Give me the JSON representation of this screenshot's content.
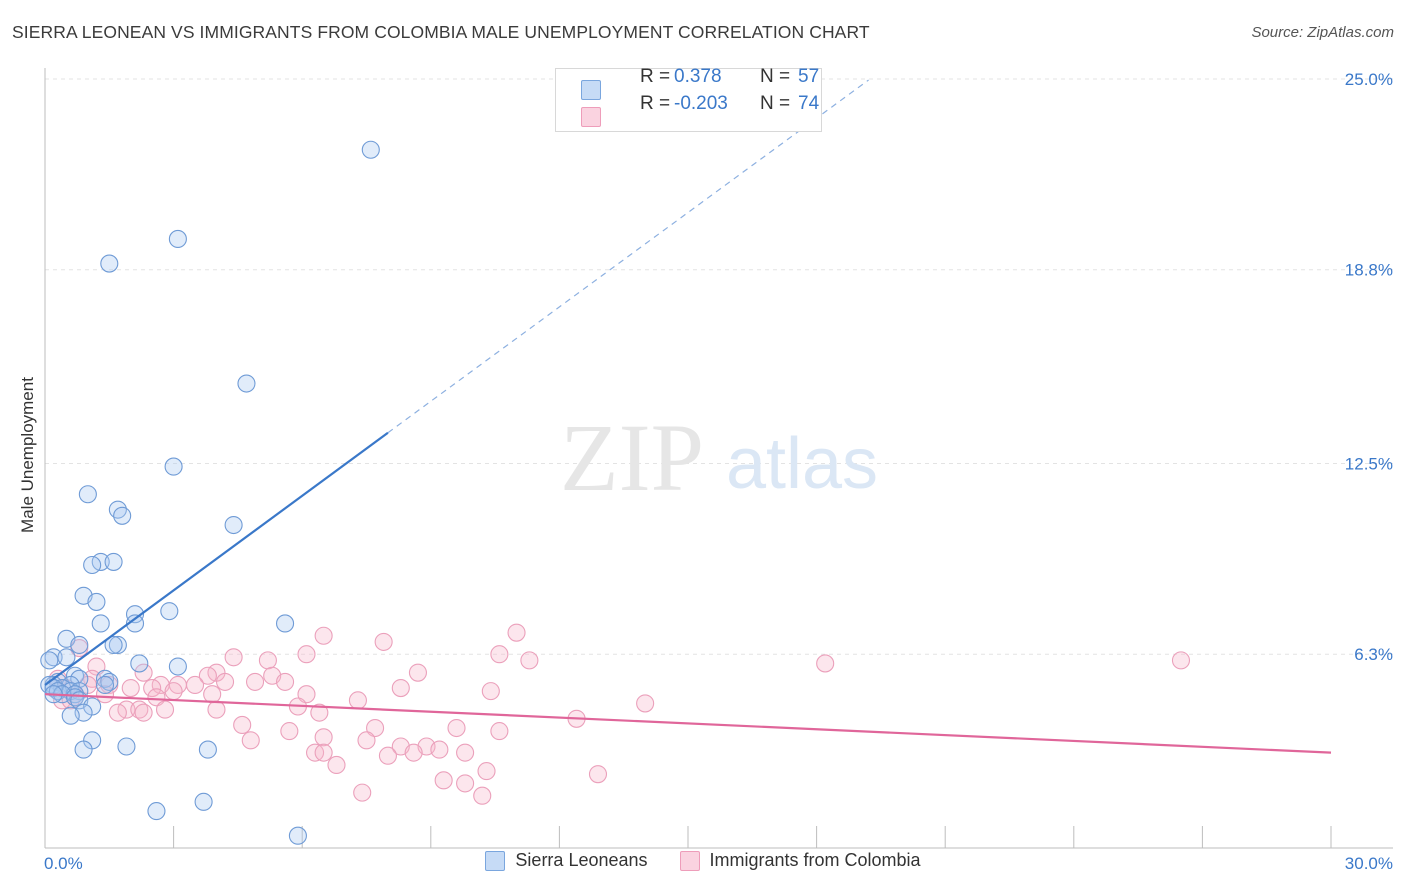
{
  "header": {
    "title": "SIERRA LEONEAN VS IMMIGRANTS FROM COLOMBIA MALE UNEMPLOYMENT CORRELATION CHART",
    "source": "Source: ZipAtlas.com"
  },
  "watermark": {
    "zip": "ZIP",
    "atlas": "atlas"
  },
  "legend": {
    "rows": [
      {
        "r_label": "R =",
        "r_value": "0.378",
        "n_label": "N =",
        "n_value": "57",
        "color": "#a9c8f0"
      },
      {
        "r_label": "R =",
        "r_value": "-0.203",
        "n_label": "N =",
        "n_value": "74",
        "color": "#f6b8cc"
      }
    ]
  },
  "bottom_legend": {
    "items": [
      {
        "label": "Sierra Leoneans",
        "color": "#a9c8f0"
      },
      {
        "label": "Immigrants from Colombia",
        "color": "#f6b8cc"
      }
    ]
  },
  "chart_data": {
    "type": "scatter",
    "title": "SIERRA LEONEAN VS IMMIGRANTS FROM COLOMBIA MALE UNEMPLOYMENT CORRELATION CHART",
    "xlabel": "",
    "ylabel": "Male Unemployment",
    "xlim": [
      0,
      30
    ],
    "ylim": [
      0,
      25.9
    ],
    "x_tick_labels": [
      "0.0%",
      "30.0%"
    ],
    "y_ticks": [
      6.3,
      12.5,
      18.8,
      25.0
    ],
    "y_tick_labels": [
      "6.3%",
      "12.5%",
      "18.8%",
      "25.0%"
    ],
    "grid": true,
    "colors": {
      "blue": "#3a78c9",
      "pink": "#e0669a",
      "blue_fill": "#a9c8f0",
      "pink_fill": "#f6b8cc"
    },
    "series": [
      {
        "name": "Sierra Leoneans",
        "color": "#3a78c9",
        "points": [
          [
            7.6,
            22.7
          ],
          [
            3.1,
            19.8
          ],
          [
            1.5,
            19.0
          ],
          [
            4.7,
            15.1
          ],
          [
            3.0,
            12.4
          ],
          [
            1.0,
            11.5
          ],
          [
            1.7,
            11.0
          ],
          [
            1.8,
            10.8
          ],
          [
            4.4,
            10.5
          ],
          [
            1.3,
            9.3
          ],
          [
            1.6,
            9.3
          ],
          [
            1.1,
            9.2
          ],
          [
            0.9,
            8.2
          ],
          [
            1.2,
            8.0
          ],
          [
            2.1,
            7.6
          ],
          [
            2.9,
            7.7
          ],
          [
            5.6,
            7.3
          ],
          [
            2.1,
            7.3
          ],
          [
            1.3,
            7.3
          ],
          [
            0.5,
            6.8
          ],
          [
            1.7,
            6.6
          ],
          [
            1.6,
            6.6
          ],
          [
            0.8,
            6.6
          ],
          [
            0.2,
            6.2
          ],
          [
            0.5,
            6.2
          ],
          [
            0.1,
            6.1
          ],
          [
            2.2,
            6.0
          ],
          [
            3.1,
            5.9
          ],
          [
            0.7,
            5.6
          ],
          [
            1.4,
            5.5
          ],
          [
            0.8,
            5.5
          ],
          [
            1.5,
            5.4
          ],
          [
            0.3,
            5.4
          ],
          [
            0.6,
            5.3
          ],
          [
            0.2,
            5.3
          ],
          [
            0.4,
            5.2
          ],
          [
            0.1,
            5.3
          ],
          [
            1.4,
            5.3
          ],
          [
            0.2,
            5.2
          ],
          [
            0.3,
            5.1
          ],
          [
            0.6,
            5.1
          ],
          [
            0.8,
            5.1
          ],
          [
            0.7,
            5.0
          ],
          [
            0.4,
            5.0
          ],
          [
            0.2,
            5.0
          ],
          [
            0.7,
            4.9
          ],
          [
            0.8,
            4.8
          ],
          [
            1.1,
            4.6
          ],
          [
            0.9,
            4.4
          ],
          [
            0.6,
            4.3
          ],
          [
            1.1,
            3.5
          ],
          [
            1.9,
            3.3
          ],
          [
            0.9,
            3.2
          ],
          [
            3.8,
            3.2
          ],
          [
            2.6,
            1.2
          ],
          [
            3.7,
            1.5
          ],
          [
            5.9,
            0.4
          ]
        ],
        "trend_solid": {
          "x": [
            0.0,
            8.0
          ],
          "y": [
            5.3,
            13.5
          ]
        },
        "trend_dashed": {
          "x": [
            8.0,
            30.0
          ],
          "y": [
            13.5,
            36.0
          ]
        }
      },
      {
        "name": "Immigrants from Colombia",
        "color": "#e0669a",
        "points": [
          [
            6.5,
            6.9
          ],
          [
            7.9,
            6.7
          ],
          [
            11.0,
            7.0
          ],
          [
            10.6,
            6.3
          ],
          [
            11.3,
            6.1
          ],
          [
            26.5,
            6.1
          ],
          [
            4.4,
            6.2
          ],
          [
            6.1,
            6.3
          ],
          [
            1.2,
            5.9
          ],
          [
            0.8,
            6.5
          ],
          [
            5.2,
            6.1
          ],
          [
            18.2,
            6.0
          ],
          [
            4.0,
            5.7
          ],
          [
            2.3,
            5.7
          ],
          [
            3.8,
            5.6
          ],
          [
            5.3,
            5.6
          ],
          [
            8.7,
            5.7
          ],
          [
            1.1,
            5.5
          ],
          [
            2.7,
            5.3
          ],
          [
            3.1,
            5.3
          ],
          [
            4.2,
            5.4
          ],
          [
            1.0,
            5.3
          ],
          [
            1.5,
            5.3
          ],
          [
            2.0,
            5.2
          ],
          [
            3.5,
            5.3
          ],
          [
            4.9,
            5.4
          ],
          [
            5.6,
            5.4
          ],
          [
            2.5,
            5.2
          ],
          [
            3.0,
            5.1
          ],
          [
            10.4,
            5.1
          ],
          [
            8.3,
            5.2
          ],
          [
            0.3,
            5.5
          ],
          [
            0.5,
            5.2
          ],
          [
            1.4,
            5.0
          ],
          [
            3.9,
            5.0
          ],
          [
            6.1,
            5.0
          ],
          [
            0.7,
            4.9
          ],
          [
            2.6,
            4.9
          ],
          [
            0.4,
            4.8
          ],
          [
            7.3,
            4.8
          ],
          [
            14.0,
            4.7
          ],
          [
            5.9,
            4.6
          ],
          [
            1.9,
            4.5
          ],
          [
            2.2,
            4.5
          ],
          [
            2.8,
            4.5
          ],
          [
            4.0,
            4.5
          ],
          [
            6.4,
            4.4
          ],
          [
            12.4,
            4.2
          ],
          [
            4.6,
            4.0
          ],
          [
            7.7,
            3.9
          ],
          [
            9.6,
            3.9
          ],
          [
            10.6,
            3.8
          ],
          [
            5.7,
            3.8
          ],
          [
            6.5,
            3.6
          ],
          [
            7.5,
            3.5
          ],
          [
            4.8,
            3.5
          ],
          [
            8.3,
            3.3
          ],
          [
            8.9,
            3.3
          ],
          [
            9.2,
            3.2
          ],
          [
            6.3,
            3.1
          ],
          [
            6.5,
            3.1
          ],
          [
            8.0,
            3.0
          ],
          [
            8.6,
            3.1
          ],
          [
            9.8,
            3.1
          ],
          [
            6.8,
            2.7
          ],
          [
            10.3,
            2.5
          ],
          [
            12.9,
            2.4
          ],
          [
            9.3,
            2.2
          ],
          [
            9.8,
            2.1
          ],
          [
            7.4,
            1.8
          ],
          [
            10.2,
            1.7
          ],
          [
            2.3,
            4.4
          ],
          [
            1.7,
            4.4
          ],
          [
            0.6,
            4.8
          ]
        ],
        "trend_solid": {
          "x": [
            0.0,
            30.0
          ],
          "y": [
            5.0,
            3.1
          ]
        }
      }
    ]
  }
}
